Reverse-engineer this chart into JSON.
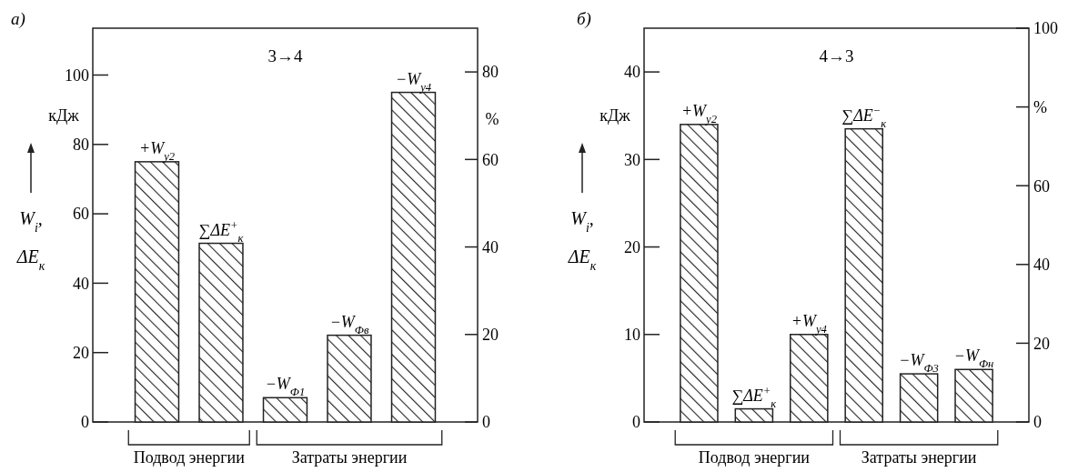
{
  "chart_data": [
    {
      "type": "bar",
      "title": "а)",
      "subtitle": "3→4",
      "ylabel": "W$_{i}$, ΔE$_{к}$",
      "categories": [
        "+W$_{у2}$",
        "∑ΔE$^{+}$$_{к}$",
        "−W$_{Ф1}$",
        "−W$_{Фв}$",
        "−W$_{у4}$"
      ],
      "values": [
        75,
        51.5,
        7,
        25,
        95
      ],
      "color": "#222222",
      "ylim": [
        0,
        113.5
      ],
      "yticks": [
        0,
        20,
        40,
        60,
        80,
        100
      ],
      "y2lim": [
        0,
        90
      ],
      "y2ticks": [
        0,
        20,
        40,
        60,
        80
      ],
      "annotations": [
        "кДж",
        "%",
        "Подвод энергии",
        "Затраты энергии"
      ]
    },
    {
      "type": "bar",
      "title": "б)",
      "subtitle": "4→3",
      "ylabel": "W$_{i}$, ΔE$_{к}$",
      "categories": [
        "+W$_{у2}$",
        "∑ΔE$^{+}$$_{к}$",
        "+W$_{у4}$",
        "∑ΔE$^{−}$$_{к}$",
        "−W$_{Ф3}$",
        "−W$_{Фн}$"
      ],
      "values": [
        34,
        1.5,
        10,
        33.5,
        5.5,
        6
      ],
      "color": "#222222",
      "ylim": [
        0,
        45
      ],
      "yticks": [
        0,
        10,
        20,
        30,
        40
      ],
      "y2lim": [
        0,
        100
      ],
      "y2ticks": [
        0,
        20,
        40,
        60,
        {
          "value": 80,
          "label": "%"
        },
        100
      ],
      "annotations": [
        "кДж",
        "Подвод энергии",
        "Затраты энергии"
      ]
    }
  ]
}
